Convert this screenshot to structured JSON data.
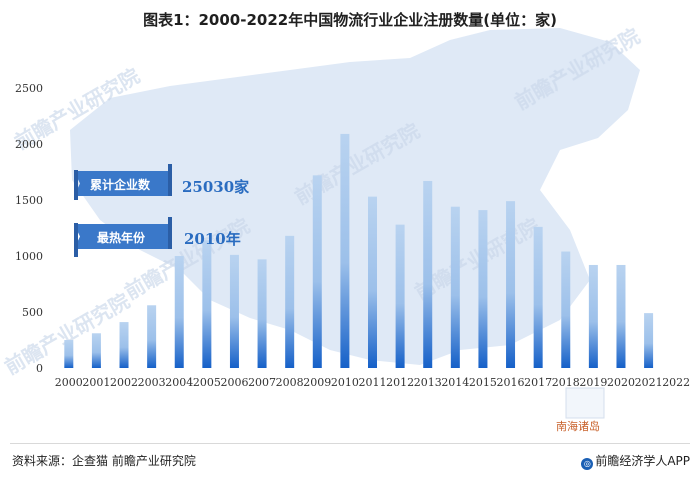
{
  "chart_data": {
    "type": "bar",
    "title": "图表1：2000-2022年中国物流行业企业注册数量(单位：家)",
    "categories": [
      "2000",
      "2001",
      "2002",
      "2003",
      "2004",
      "2005",
      "2006",
      "2007",
      "2008",
      "2009",
      "2010",
      "2011",
      "2012",
      "2013",
      "2014",
      "2015",
      "2016",
      "2017",
      "2018",
      "2019",
      "2020",
      "2021",
      "2022"
    ],
    "values": [
      250,
      310,
      410,
      560,
      1000,
      1140,
      1010,
      970,
      1180,
      1720,
      2090,
      1530,
      1280,
      1670,
      1440,
      1410,
      1490,
      1260,
      1040,
      920,
      920,
      490,
      0
    ],
    "ylim": [
      0,
      2500
    ],
    "yticks": [
      0,
      500,
      1000,
      1500,
      2000,
      2500
    ],
    "grid": false,
    "bar_color_top": "#b9d3f0",
    "bar_color_bottom": "#1560c8"
  },
  "annotations": {
    "total_label": "累计企业数",
    "total_value": "25030家",
    "peak_label": "最热年份",
    "peak_value": "2010年",
    "map_label": "南海诸岛"
  },
  "watermark": "前瞻产业研究院",
  "footer": {
    "source": "资料来源：企查猫 前瞻产业研究院",
    "brand": "前瞻经济学人APP"
  },
  "colors": {
    "map": "#dfe9f6",
    "banner": "#3a78c9",
    "annotation_value": "#2a6cc0",
    "map_label": "#c8602a"
  }
}
